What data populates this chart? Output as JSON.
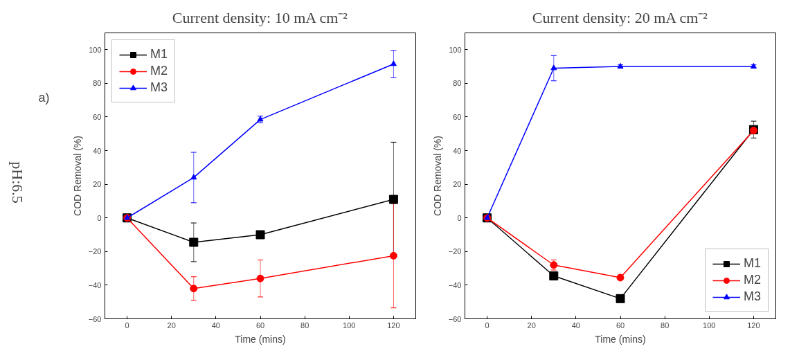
{
  "chart_data": [
    {
      "type": "line",
      "title": "Current density: 10 mA cm⁻²",
      "xlabel": "Time (mins)",
      "ylabel": "COD Removal (%)",
      "annotations": [
        "a)",
        "pH:6.5"
      ],
      "x": [
        0,
        30,
        60,
        120
      ],
      "xlim": [
        -10,
        130
      ],
      "ylim": [
        -60,
        110
      ],
      "xticks": [
        0,
        20,
        40,
        60,
        80,
        100,
        120
      ],
      "yticks": [
        -60,
        -40,
        -20,
        0,
        20,
        40,
        60,
        80,
        100
      ],
      "grid": false,
      "legend": "top left",
      "series": [
        {
          "name": "M1",
          "color": "#000000",
          "marker": "square",
          "values": [
            0,
            -14.5,
            -10,
            11
          ],
          "errors": [
            null,
            11.5,
            null,
            34
          ]
        },
        {
          "name": "M2",
          "color": "#ff0000",
          "marker": "circle",
          "values": [
            0,
            -42,
            -36,
            -22.5
          ],
          "errors": [
            null,
            7,
            11,
            31
          ]
        },
        {
          "name": "M3",
          "color": "#0000ff",
          "marker": "triangle",
          "values": [
            0,
            24,
            58.5,
            91.5
          ],
          "errors": [
            null,
            15,
            2,
            8
          ]
        }
      ]
    },
    {
      "type": "line",
      "title": "Current density: 20 mA cm⁻²",
      "xlabel": "Time (mins)",
      "ylabel": "COD Removal (%)",
      "x": [
        0,
        30,
        60,
        120
      ],
      "xlim": [
        -10,
        130
      ],
      "ylim": [
        -60,
        110
      ],
      "xticks": [
        0,
        20,
        40,
        60,
        80,
        100,
        120
      ],
      "yticks": [
        -60,
        -40,
        -20,
        0,
        20,
        40,
        60,
        80,
        100
      ],
      "grid": false,
      "legend": "bottom right",
      "series": [
        {
          "name": "M1",
          "color": "#000000",
          "marker": "square",
          "values": [
            0,
            -34.5,
            -48,
            52.5
          ],
          "errors": [
            null,
            1.5,
            2,
            5
          ]
        },
        {
          "name": "M2",
          "color": "#ff0000",
          "marker": "circle",
          "values": [
            0,
            -28,
            -35.5,
            52
          ],
          "errors": [
            null,
            3,
            1,
            2
          ]
        },
        {
          "name": "M3",
          "color": "#0000ff",
          "marker": "triangle",
          "values": [
            0,
            89,
            90,
            90
          ],
          "errors": [
            null,
            7.5,
            1,
            1
          ]
        }
      ]
    }
  ]
}
